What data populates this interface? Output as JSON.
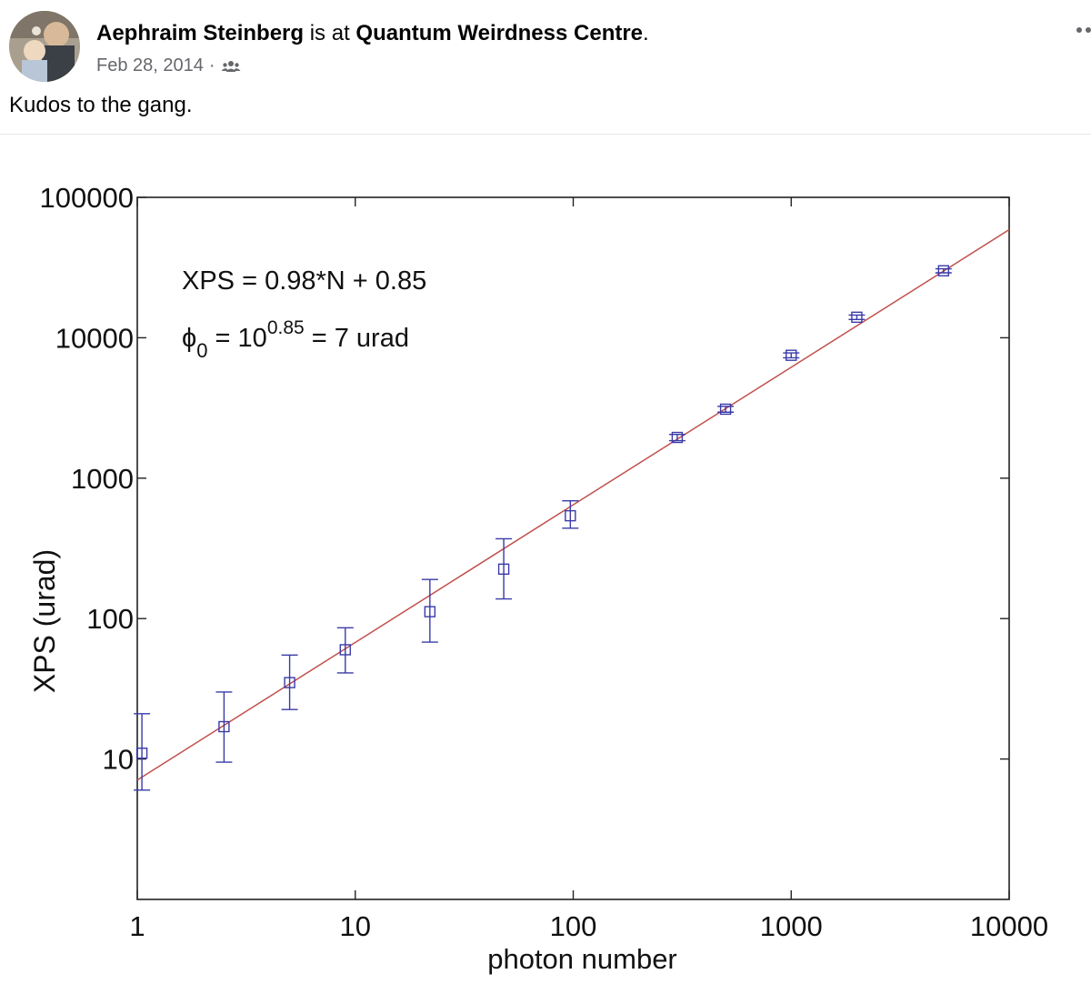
{
  "post": {
    "author": "Aephraim Steinberg",
    "connector": " is at ",
    "place": "Quantum Weirdness Centre",
    "period": ".",
    "date": "Feb 28, 2014",
    "separator": "·",
    "audience_icon": "friends-icon",
    "caption": "Kudos to the gang."
  },
  "chart_data": {
    "type": "scatter",
    "title": "",
    "xlabel": "photon number",
    "ylabel": "XPS (urad)",
    "xscale": "log",
    "yscale": "log",
    "xlim": [
      1,
      10000
    ],
    "ylim": [
      1,
      100000
    ],
    "x_ticks": [
      1,
      10,
      100,
      1000,
      10000
    ],
    "x_tick_labels": [
      "1",
      "10",
      "100",
      "1000",
      "10000"
    ],
    "y_ticks": [
      10,
      100,
      1000,
      10000,
      100000
    ],
    "y_tick_labels": [
      "10",
      "100",
      "1000",
      "10000",
      "100000"
    ],
    "grid": false,
    "annotations": {
      "fit_equation": "XPS = 0.98*N + 0.85",
      "phi_symbol": "ϕ",
      "phi_subscript": "0",
      "phi_eq": " = 10",
      "phi_exponent": "0.85",
      "phi_result": " = 7 urad"
    },
    "series": [
      {
        "marker": "square",
        "color": "#3a3aa8",
        "points": [
          {
            "x": 1.05,
            "y": 11,
            "ylo": 6,
            "yhi": 21
          },
          {
            "x": 2.5,
            "y": 17,
            "ylo": 9.5,
            "yhi": 30
          },
          {
            "x": 5,
            "y": 35,
            "ylo": 22.5,
            "yhi": 55
          },
          {
            "x": 9,
            "y": 60,
            "ylo": 41,
            "yhi": 86
          },
          {
            "x": 22,
            "y": 112,
            "ylo": 68,
            "yhi": 190
          },
          {
            "x": 48,
            "y": 225,
            "ylo": 138,
            "yhi": 370
          },
          {
            "x": 97,
            "y": 540,
            "ylo": 440,
            "yhi": 690
          },
          {
            "x": 300,
            "y": 1950,
            "ylo": 1850,
            "yhi": 2050
          },
          {
            "x": 500,
            "y": 3100,
            "ylo": 2950,
            "yhi": 3250
          },
          {
            "x": 1000,
            "y": 7500,
            "ylo": 7200,
            "yhi": 7800
          },
          {
            "x": 2000,
            "y": 14000,
            "ylo": 13500,
            "yhi": 14500
          },
          {
            "x": 5000,
            "y": 30000,
            "ylo": 29000,
            "yhi": 31000
          }
        ]
      }
    ],
    "fit_line": {
      "color": "#c0504d",
      "slope": 0.98,
      "intercept_log10": 0.85
    }
  }
}
